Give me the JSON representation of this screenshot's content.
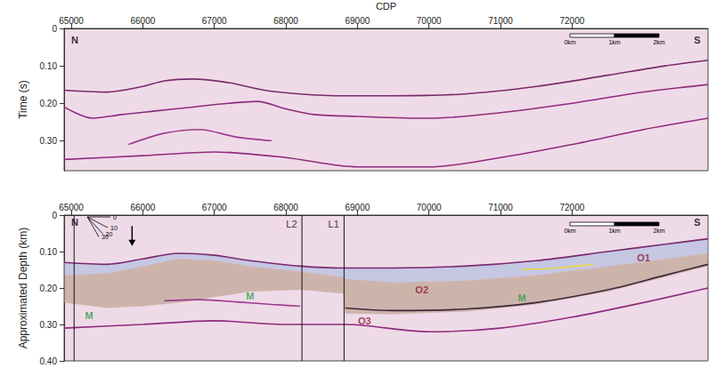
{
  "chart_data": [
    {
      "type": "line",
      "xlabel": "CDP",
      "ylabel": "Time (s)",
      "xlim": [
        64900,
        73900
      ],
      "xticks": [
        65000,
        66000,
        67000,
        68000,
        69000,
        70000,
        71000,
        72000
      ],
      "ylim": [
        0,
        0.38
      ],
      "yticks": [
        0,
        {
          "value": 0.1,
          "label": "0.10"
        },
        {
          "value": 0.2,
          "label": "0.20"
        },
        {
          "value": 0.3,
          "label": "0.30"
        }
      ],
      "scale_bar": [
        "0km",
        "1km",
        "2km"
      ],
      "series": [
        {
          "color": "#7a2a6e",
          "x": [
            64900,
            65500,
            66000,
            66300,
            66700,
            67200,
            67700,
            68200,
            68800,
            69500,
            70500,
            71500,
            72500,
            73300,
            73900
          ],
          "values": [
            0.165,
            0.17,
            0.155,
            0.14,
            0.135,
            0.145,
            0.165,
            0.175,
            0.18,
            0.18,
            0.175,
            0.155,
            0.125,
            0.1,
            0.085
          ]
        },
        {
          "color": "#8e2c7d",
          "x": [
            64900,
            65300,
            65700,
            66200,
            66700,
            67200,
            67600,
            68000,
            68400,
            69000,
            70000,
            71000,
            72000,
            73000,
            73900
          ],
          "values": [
            0.21,
            0.24,
            0.23,
            0.22,
            0.21,
            0.2,
            0.195,
            0.215,
            0.23,
            0.235,
            0.24,
            0.225,
            0.2,
            0.17,
            0.15
          ]
        },
        {
          "color": "#9c3c8c",
          "x": [
            65800,
            66300,
            66800,
            67300,
            67800
          ],
          "values": [
            0.31,
            0.28,
            0.27,
            0.29,
            0.3
          ]
        },
        {
          "color": "#8e2c7d",
          "x": [
            64900,
            66000,
            67000,
            68000,
            69000,
            70000,
            71000,
            72000,
            73000,
            73900
          ],
          "values": [
            0.35,
            0.34,
            0.33,
            0.345,
            0.37,
            0.37,
            0.345,
            0.31,
            0.27,
            0.24
          ]
        }
      ],
      "annotations": [
        {
          "text": "N",
          "x": 65050,
          "y": 0.03,
          "color": "#000000"
        },
        {
          "text": "S",
          "x": 73750,
          "y": 0.03,
          "color": "#000000"
        }
      ]
    },
    {
      "type": "line",
      "ylabel": "Approximated Depth (km)",
      "xlim": [
        64900,
        73900
      ],
      "xticks": [
        65000,
        66000,
        67000,
        68000,
        69000,
        70000,
        71000,
        72000
      ],
      "ylim": [
        0,
        0.4
      ],
      "yticks": [
        0,
        {
          "value": 0.1,
          "label": "0.10"
        },
        {
          "value": 0.2,
          "label": "0.20"
        },
        {
          "value": 0.3,
          "label": "0.30"
        },
        {
          "value": 0.4,
          "label": "0.40"
        }
      ],
      "scale_bar": [
        "0km",
        "1km",
        "2km"
      ],
      "dip_fan": [
        0,
        10,
        20,
        30
      ],
      "arrow": {
        "x": 65850,
        "y": [
          0.03,
          0.085
        ]
      },
      "areas": [
        {
          "color": "#a9b9df",
          "x": [
            64900,
            65500,
            66000,
            66500,
            67000,
            67500,
            68200,
            68800,
            68830,
            69500,
            70500,
            71500,
            72500,
            73300,
            73900
          ],
          "top": [
            0.13,
            0.135,
            0.12,
            0.105,
            0.11,
            0.125,
            0.14,
            0.145,
            0.145,
            0.145,
            0.14,
            0.125,
            0.1,
            0.08,
            0.065
          ],
          "base": [
            0.165,
            0.16,
            0.14,
            0.12,
            0.125,
            0.14,
            0.155,
            0.17,
            0.175,
            0.185,
            0.18,
            0.165,
            0.14,
            0.12,
            0.105
          ]
        },
        {
          "color": "#b59a82",
          "x": [
            64900,
            65500,
            66000,
            66500,
            67000,
            67500,
            68200,
            68800,
            68830,
            69500,
            70500,
            71500,
            72500,
            73300,
            73900
          ],
          "top": [
            0.165,
            0.16,
            0.14,
            0.12,
            0.125,
            0.14,
            0.155,
            0.17,
            0.175,
            0.185,
            0.18,
            0.165,
            0.14,
            0.12,
            0.105
          ],
          "base": [
            0.24,
            0.255,
            0.25,
            0.24,
            0.225,
            0.21,
            0.205,
            0.215,
            0.27,
            0.272,
            0.265,
            0.245,
            0.21,
            0.17,
            0.14
          ]
        }
      ],
      "series": [
        {
          "color": "#7a2a6e",
          "x": [
            64900,
            65500,
            66000,
            66500,
            67000,
            67500,
            68200,
            68800,
            68830,
            69500,
            70500,
            71500,
            72500,
            73300,
            73900
          ],
          "values": [
            0.13,
            0.135,
            0.12,
            0.105,
            0.11,
            0.125,
            0.14,
            0.145,
            0.145,
            0.145,
            0.14,
            0.125,
            0.1,
            0.08,
            0.065
          ]
        },
        {
          "color": "#3b2a3a",
          "x": [
            68830,
            69500,
            70500,
            71500,
            72500,
            73300,
            73900
          ],
          "values": [
            0.255,
            0.262,
            0.258,
            0.24,
            0.205,
            0.165,
            0.135
          ]
        },
        {
          "color": "#9c3c8c",
          "x": [
            66300,
            66800,
            67300,
            67800,
            68200
          ],
          "values": [
            0.235,
            0.232,
            0.238,
            0.245,
            0.25
          ]
        },
        {
          "color": "#8e2c7d",
          "x": [
            64900,
            66000,
            67000,
            68000,
            68830,
            70000,
            71000,
            72000,
            73000,
            73900
          ],
          "values": [
            0.31,
            0.3,
            0.29,
            0.3,
            0.3,
            0.32,
            0.31,
            0.28,
            0.24,
            0.2
          ]
        },
        {
          "color": "#e8d84a",
          "x": [
            71300,
            71800,
            72300
          ],
          "values": [
            0.15,
            0.145,
            0.135
          ]
        }
      ],
      "vertical_lines": [
        {
          "x": 65040
        },
        {
          "x": 68225,
          "label": "L2"
        },
        {
          "x": 68813,
          "label": "L1"
        }
      ],
      "annotations": [
        {
          "text": "N",
          "x": 65050,
          "y": 0.02,
          "color": "#000000"
        },
        {
          "text": "S",
          "x": 73750,
          "y": 0.02,
          "color": "#000000"
        },
        {
          "text": "M",
          "x": 65250,
          "y": 0.275,
          "color": "#2e9e48"
        },
        {
          "text": "M",
          "x": 67500,
          "y": 0.222,
          "color": "#2e9e48"
        },
        {
          "text": "M",
          "x": 71300,
          "y": 0.228,
          "color": "#2e9e48"
        },
        {
          "text": "O1",
          "x": 73000,
          "y": 0.118,
          "color": "#8b1a2b"
        },
        {
          "text": "O2",
          "x": 69900,
          "y": 0.205,
          "color": "#8b1a2b"
        },
        {
          "text": "O3",
          "x": 69100,
          "y": 0.29,
          "color": "#8b1a2b"
        }
      ]
    }
  ]
}
